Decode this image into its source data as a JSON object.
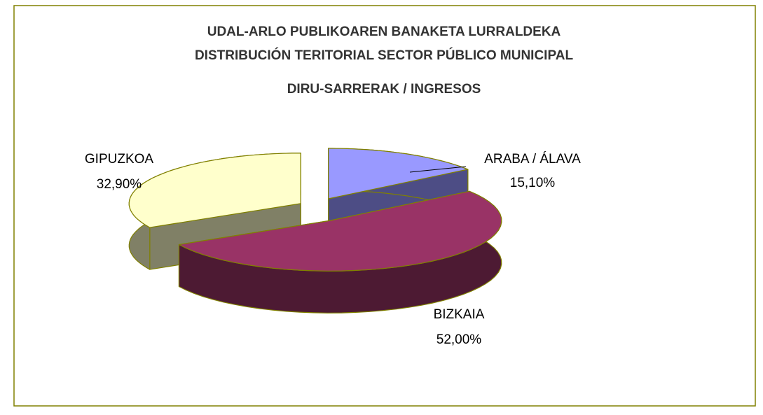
{
  "chart_data": {
    "type": "pie3d",
    "title": [
      "UDAL-ARLO PUBLIKOAREN BANAKETA  LURRALDEKA",
      "DISTRIBUCIÓN TERITORIAL SECTOR PÚBLICO MUNICIPAL",
      "DIRU-SARRERAK / INGRESOS"
    ],
    "categories": [
      "ARABA / ÁLAVA",
      "BIZKAIA",
      "GIPUZKOA"
    ],
    "values": [
      15.1,
      52,
      32.9
    ],
    "value_labels": [
      "15,10%",
      "52,00%",
      "32,90%"
    ],
    "colors": [
      "#9999ff",
      "#993366",
      "#ffffcc"
    ],
    "side_colors": [
      "#4d4d85",
      "#4d1a33",
      "#808066"
    ]
  }
}
